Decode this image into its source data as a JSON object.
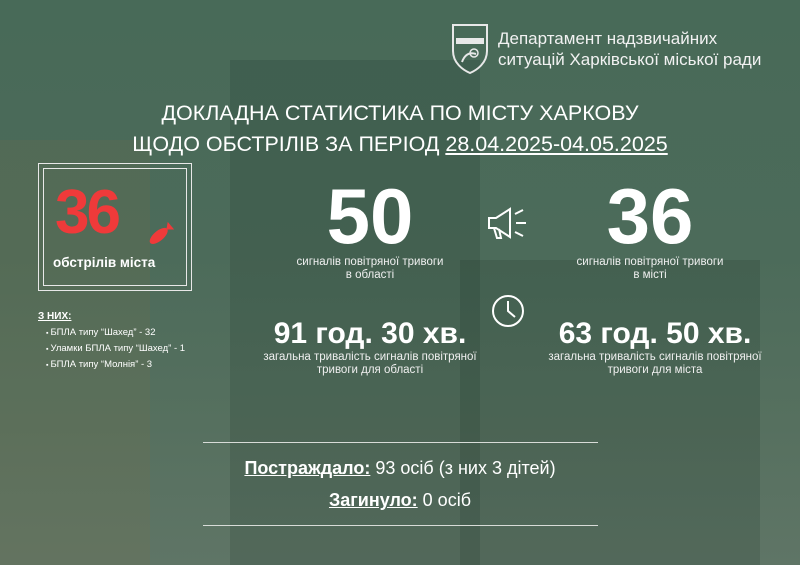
{
  "header": {
    "org_line1": "Департамент надзвичайних",
    "org_line2": "ситуацій Харківської міської ради",
    "logo_text": "ДЕПАРТАМЕНТ НАДЗВИЧАЙНИХ СИТУАЦІЙ ХАРКІВ"
  },
  "title": {
    "line1": "ДОКЛАДНА СТАТИСТИКА ПО МІСТУ ХАРКОВУ",
    "line2_prefix": "ЩОДО ОБСТРІЛІВ ЗА ПЕРІОД ",
    "period": "28.04.2025-04.05.2025"
  },
  "shelling": {
    "count": "36",
    "label": "обстрілів міста",
    "of_them": "З НИХ:",
    "items": [
      "БПЛА типу “Шахед” - 32",
      "Уламки БПЛА типу “Шахед” - 1",
      "БПЛА типу “Молнія” - 3"
    ],
    "accent": "#ef3a3a"
  },
  "alerts_region": {
    "count": "50",
    "label1": "сигналів повітряної тривоги",
    "label2": "в області"
  },
  "alerts_city": {
    "count": "36",
    "label1": "сигналів повітряної тривоги",
    "label2": "в місті"
  },
  "duration_region": {
    "value": "91 год. 30 хв.",
    "label1": "загальна тривалість сигналів повітряної",
    "label2": "тривоги для області"
  },
  "duration_city": {
    "value": "63 год. 50 хв.",
    "label1": "загальна тривалість сигналів повітряної",
    "label2": "тривоги для міста"
  },
  "casualties": {
    "injured_label": "Постраждало:",
    "injured_value": " 93 осіб (з них 3 дітей)",
    "killed_label": "Загинуло:",
    "killed_value": " 0 осіб"
  },
  "icons": [
    "logo-shield",
    "bomb-icon",
    "megaphone-icon",
    "clock-icon"
  ]
}
